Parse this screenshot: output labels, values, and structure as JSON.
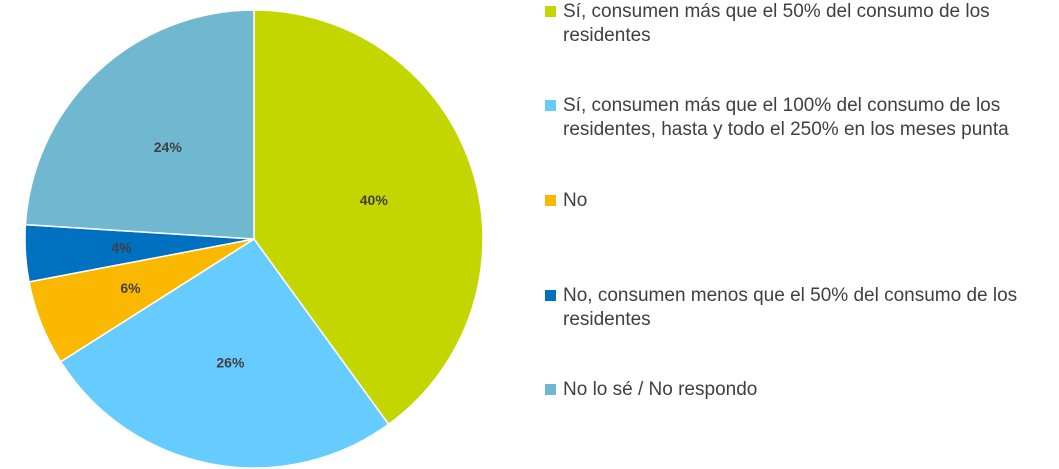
{
  "chart_data": {
    "type": "pie",
    "slices": [
      {
        "label": "Sí, consumen más que el 50% del consumo de los residentes",
        "value": 40,
        "data_label": "40%",
        "color": "#c3d600"
      },
      {
        "label": "Sí, consumen más que el 100% del consumo de los residentes, hasta y todo el 250% en los meses punta",
        "value": 26,
        "data_label": "26%",
        "color": "#66ccff"
      },
      {
        "label": "No",
        "value": 6,
        "data_label": "6%",
        "color": "#fbb800"
      },
      {
        "label": "No, consumen menos que el 50% del consumo de los residentes",
        "value": 4,
        "data_label": "4%",
        "color": "#0070c0"
      },
      {
        "label": "No lo sé / No respondo",
        "value": 24,
        "data_label": "24%",
        "color": "#70b8d0"
      }
    ],
    "legend_position": "right",
    "data_label_color": "#404040"
  }
}
